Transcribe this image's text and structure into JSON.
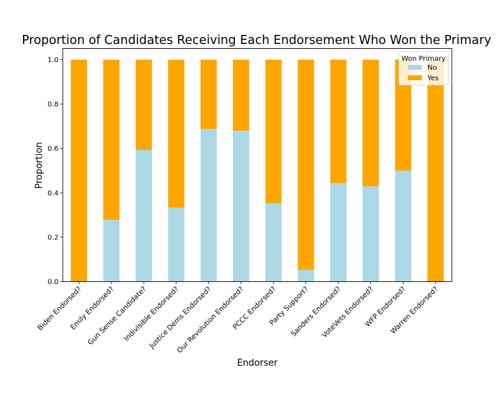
{
  "chart_data": {
    "type": "bar",
    "stacked": true,
    "title": "Proportion of Candidates Receiving Each Endorsement Who Won the Primary",
    "xlabel": "Endorser",
    "ylabel": "Proportion",
    "ylim": [
      0,
      1.05
    ],
    "yticks": [
      "0.0",
      "0.2",
      "0.4",
      "0.6",
      "0.8",
      "1.0"
    ],
    "categories": [
      "Biden Endorsed?",
      "Emily Endorsed?",
      "Gun Sense Candidate?",
      "Indivisible Endorsed?",
      "Justice Dems Endorsed?",
      "Our Revolution Endorsed?",
      "PCCC Endorsed?",
      "Party Support?",
      "Sanders Endorsed?",
      "VoteVets Endorsed?",
      "WFP Endorsed?",
      "Warren Endorsed?"
    ],
    "series": [
      {
        "name": "No",
        "color": "#add8e6",
        "values": [
          0.0,
          0.278,
          0.593,
          0.333,
          0.688,
          0.68,
          0.353,
          0.053,
          0.444,
          0.429,
          0.5,
          0.0
        ]
      },
      {
        "name": "Yes",
        "color": "#ffa500",
        "values": [
          1.0,
          0.722,
          0.407,
          0.667,
          0.312,
          0.32,
          0.647,
          0.947,
          0.556,
          0.571,
          0.5,
          1.0
        ]
      }
    ],
    "legend": {
      "title": "Won Primary",
      "placement": "top-right"
    },
    "grid": false
  }
}
